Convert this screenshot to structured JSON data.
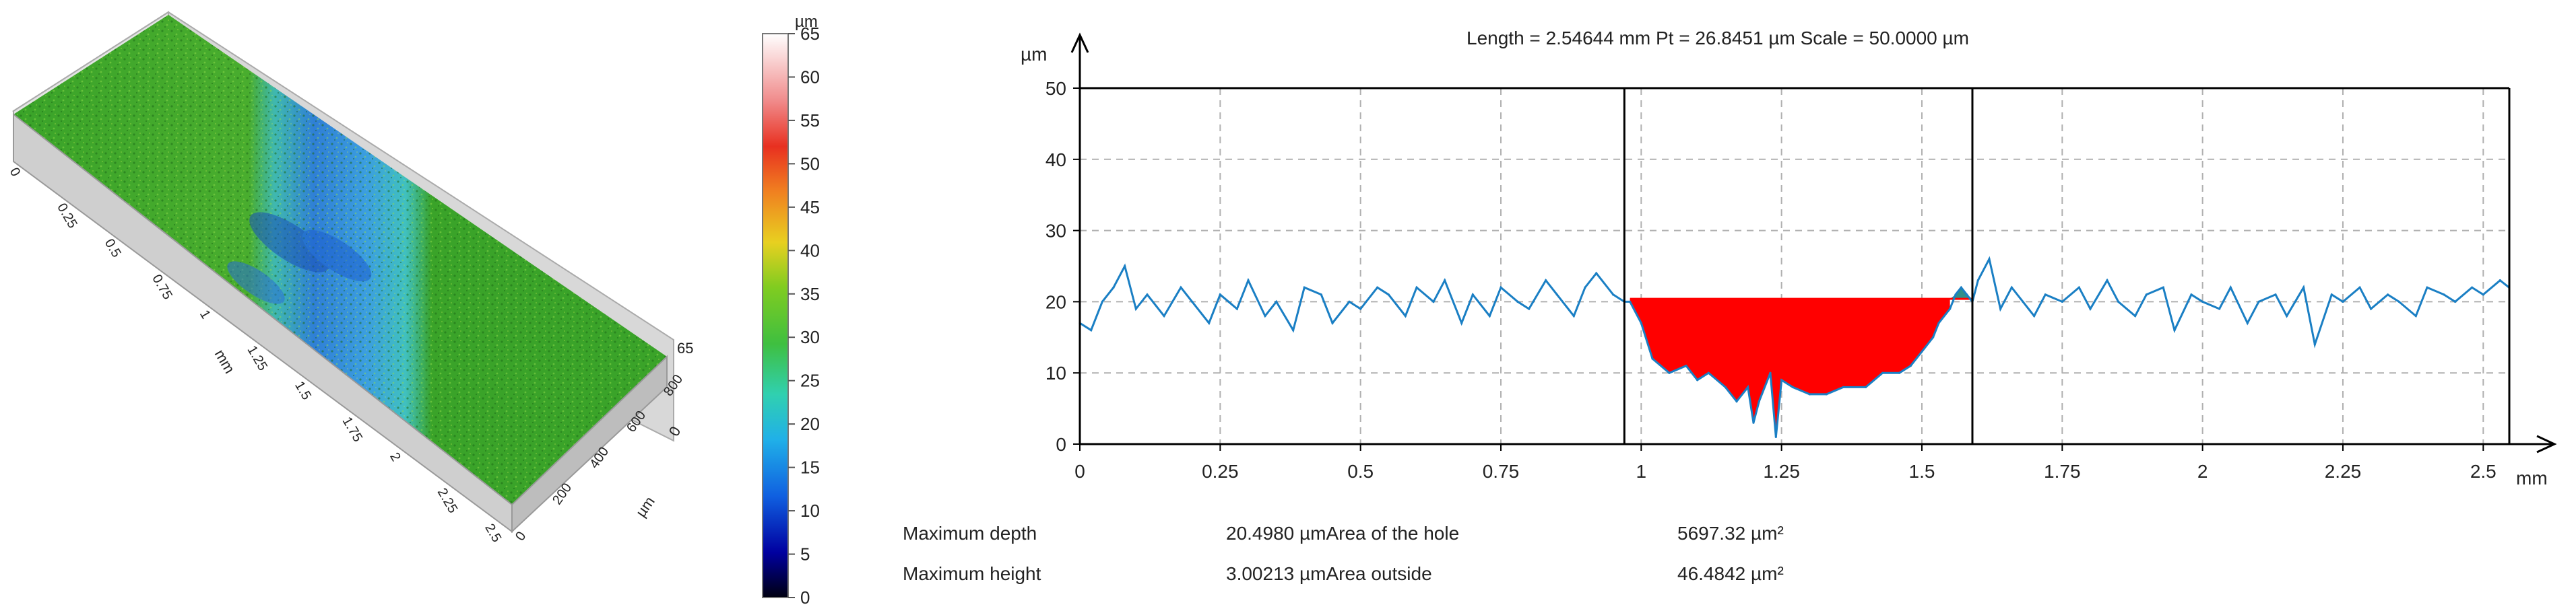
{
  "colors": {
    "profile_line": "#1a7fc4",
    "hole_fill": "#ff0000",
    "outside_fill": "#2e8f8a",
    "grid": "#b0b0b0",
    "axis": "#000000",
    "surface_green": "#3aa329",
    "surface_blue": "#2f7fd6"
  },
  "chart_data": [
    {
      "type": "heatmap",
      "variant": "3d-surface",
      "x_axis": {
        "unit": "mm",
        "ticks": [
          "0",
          "0.25",
          "0.5",
          "0.75",
          "1",
          "1.25",
          "1.5",
          "1.75",
          "2",
          "2.25",
          "2.5"
        ]
      },
      "y_axis": {
        "unit": "µm",
        "ticks": [
          "0",
          "200",
          "400",
          "600",
          "800"
        ]
      },
      "z_axis": {
        "ticks": [
          "0",
          "65"
        ]
      },
      "colorbar": {
        "unit": "µm",
        "ticks": [
          "0",
          "5",
          "10",
          "15",
          "20",
          "25",
          "30",
          "35",
          "40",
          "45",
          "50",
          "55",
          "60",
          "65"
        ],
        "range": [
          0,
          65
        ]
      }
    },
    {
      "type": "line",
      "title": "Length = 2.54644 mm  Pt = 26.8451 µm  Scale = 50.0000 µm",
      "ylabel": "µm",
      "xlabel": "mm",
      "xlim": [
        0,
        2.54644
      ],
      "ylim": [
        0,
        50
      ],
      "grid": true,
      "x_ticks": [
        "0",
        "0.25",
        "0.5",
        "0.75",
        "1",
        "1.25",
        "1.5",
        "1.75",
        "2",
        "2.25",
        "2.5"
      ],
      "y_ticks": [
        "0",
        "10",
        "20",
        "30",
        "40",
        "50"
      ],
      "cursor_lines": [
        0.97,
        1.59
      ],
      "reference_level": 20.4,
      "hole_range": [
        0.98,
        1.55
      ],
      "outside_range": [
        1.55,
        1.59
      ],
      "series": [
        {
          "x": [
            0.0,
            0.02,
            0.04,
            0.06,
            0.08,
            0.1,
            0.12,
            0.15,
            0.18,
            0.2,
            0.23,
            0.25,
            0.28,
            0.3,
            0.33,
            0.35,
            0.38,
            0.4,
            0.43,
            0.45,
            0.48,
            0.5,
            0.53,
            0.55,
            0.58,
            0.6,
            0.63,
            0.65,
            0.68,
            0.7,
            0.73,
            0.75,
            0.78,
            0.8,
            0.83,
            0.85,
            0.88,
            0.9,
            0.92,
            0.95,
            0.97,
            0.98,
            1.0,
            1.02,
            1.05,
            1.08,
            1.1,
            1.12,
            1.15,
            1.17,
            1.19,
            1.2,
            1.21,
            1.23,
            1.24,
            1.25,
            1.27,
            1.3,
            1.33,
            1.36,
            1.4,
            1.43,
            1.46,
            1.48,
            1.5,
            1.52,
            1.53,
            1.55,
            1.56,
            1.57,
            1.58,
            1.59,
            1.6,
            1.62,
            1.64,
            1.66,
            1.68,
            1.7,
            1.72,
            1.75,
            1.78,
            1.8,
            1.83,
            1.85,
            1.88,
            1.9,
            1.93,
            1.95,
            1.98,
            2.0,
            2.03,
            2.05,
            2.08,
            2.1,
            2.13,
            2.15,
            2.18,
            2.2,
            2.23,
            2.25,
            2.28,
            2.3,
            2.33,
            2.35,
            2.38,
            2.4,
            2.43,
            2.45,
            2.48,
            2.5,
            2.53,
            2.546
          ],
          "y": [
            17,
            16,
            20,
            22,
            25,
            19,
            21,
            18,
            22,
            20,
            17,
            21,
            19,
            23,
            18,
            20,
            16,
            22,
            21,
            17,
            20,
            19,
            22,
            21,
            18,
            22,
            20,
            23,
            17,
            21,
            18,
            22,
            20,
            19,
            23,
            21,
            18,
            22,
            24,
            21,
            20,
            20,
            17,
            12,
            10,
            11,
            9,
            10,
            8,
            6,
            8,
            3,
            6,
            10,
            1,
            9,
            8,
            7,
            7,
            8,
            8,
            10,
            10,
            11,
            13,
            15,
            17,
            19,
            21,
            22,
            21,
            20,
            23,
            26,
            19,
            22,
            20,
            18,
            21,
            20,
            22,
            19,
            23,
            20,
            18,
            21,
            22,
            16,
            21,
            20,
            19,
            22,
            17,
            20,
            21,
            18,
            22,
            14,
            21,
            20,
            22,
            19,
            21,
            20,
            18,
            22,
            21,
            20,
            22,
            21,
            23,
            22
          ]
        }
      ]
    }
  ],
  "results": {
    "rows": [
      {
        "label": "Maximum depth",
        "value": "20.4980 µmArea of the hole",
        "value2": "5697.32 µm²"
      },
      {
        "label": "Maximum height",
        "value": "3.00213 µmArea outside",
        "value2": "46.4842 µm²"
      }
    ]
  }
}
